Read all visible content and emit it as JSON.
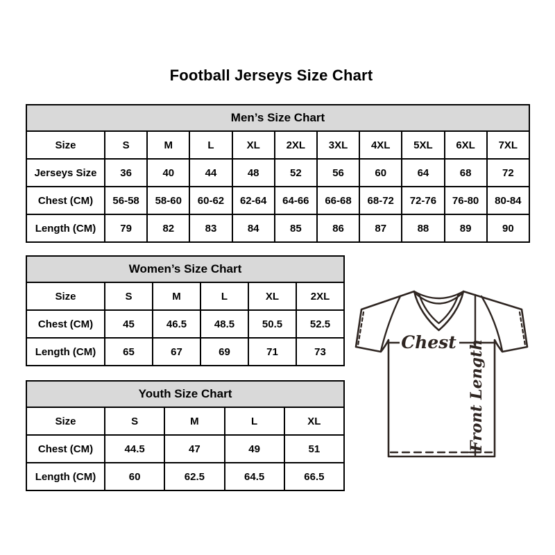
{
  "page_title": "Football Jerseys Size Chart",
  "colors": {
    "table_header_bg": "#d9d9d9",
    "table_border": "#000000",
    "jersey_line": "#2e2521"
  },
  "jersey_diagram": {
    "chest_label": "Chest",
    "front_length_label": "Front Length"
  },
  "chart_data": [
    {
      "type": "table",
      "title": "Men’s Size Chart",
      "rows": [
        [
          "Size",
          "S",
          "M",
          "L",
          "XL",
          "2XL",
          "3XL",
          "4XL",
          "5XL",
          "6XL",
          "7XL"
        ],
        [
          "Jerseys Size",
          "36",
          "40",
          "44",
          "48",
          "52",
          "56",
          "60",
          "64",
          "68",
          "72"
        ],
        [
          "Chest (CM)",
          "56-58",
          "58-60",
          "60-62",
          "62-64",
          "64-66",
          "66-68",
          "68-72",
          "72-76",
          "76-80",
          "80-84"
        ],
        [
          "Length (CM)",
          "79",
          "82",
          "83",
          "84",
          "85",
          "86",
          "87",
          "88",
          "89",
          "90"
        ]
      ]
    },
    {
      "type": "table",
      "title": "Women’s Size Chart",
      "rows": [
        [
          "Size",
          "S",
          "M",
          "L",
          "XL",
          "2XL"
        ],
        [
          "Chest (CM)",
          "45",
          "46.5",
          "48.5",
          "50.5",
          "52.5"
        ],
        [
          "Length (CM)",
          "65",
          "67",
          "69",
          "71",
          "73"
        ]
      ]
    },
    {
      "type": "table",
      "title": "Youth Size Chart",
      "rows": [
        [
          "Size",
          "S",
          "M",
          "L",
          "XL"
        ],
        [
          "Chest (CM)",
          "44.5",
          "47",
          "49",
          "51"
        ],
        [
          "Length (CM)",
          "60",
          "62.5",
          "64.5",
          "66.5"
        ]
      ]
    }
  ]
}
